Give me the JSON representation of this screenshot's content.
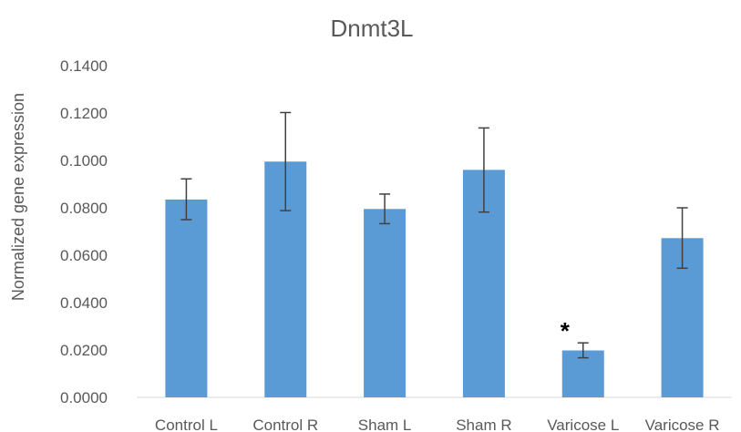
{
  "chart_data": {
    "type": "bar",
    "title": "Dnmt3L",
    "xlabel": "",
    "ylabel": "Normalized gene expression",
    "categories": [
      "Control L",
      "Control R",
      "Sham L",
      "Sham R",
      "Varicose L",
      "Varicose R"
    ],
    "values": [
      0.0835,
      0.0995,
      0.0795,
      0.096,
      0.0198,
      0.0672
    ],
    "error_low": [
      0.075,
      0.0788,
      0.0733,
      0.0782,
      0.0167,
      0.0545
    ],
    "error_high": [
      0.0922,
      0.1202,
      0.0858,
      0.1137,
      0.023,
      0.08
    ],
    "annotations": [
      {
        "category": "Varicose L",
        "text": "*"
      }
    ],
    "yticks": [
      "0.0000",
      "0.0200",
      "0.0400",
      "0.0600",
      "0.0800",
      "0.1000",
      "0.1200",
      "0.1400"
    ],
    "ylim": [
      0,
      0.14
    ],
    "grid": false,
    "colors": {
      "bar": "#5b9bd5",
      "error": "#404040",
      "axis": "#d9d9d9"
    }
  }
}
